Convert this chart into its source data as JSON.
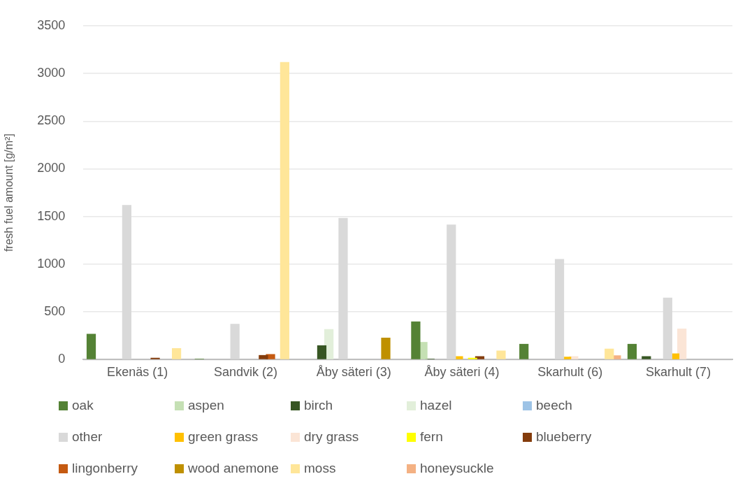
{
  "chart_data": {
    "type": "bar",
    "ylabel": "fresh fuel amount [g/m²]",
    "categories": [
      "Ekenäs (1)",
      "Sandvik (2)",
      "Åby säteri (3)",
      "Åby säteri (4)",
      "Skarhult (6)",
      "Skarhult (7)"
    ],
    "series": [
      {
        "name": "oak",
        "color": "#548235",
        "values": [
          270,
          10,
          0,
          400,
          165,
          165
        ]
      },
      {
        "name": "aspen",
        "color": "#c5e0b4",
        "values": [
          0,
          0,
          0,
          185,
          0,
          0
        ]
      },
      {
        "name": "birch",
        "color": "#375623",
        "values": [
          0,
          0,
          150,
          10,
          0,
          35
        ]
      },
      {
        "name": "hazel",
        "color": "#e2efda",
        "values": [
          0,
          0,
          320,
          0,
          0,
          0
        ]
      },
      {
        "name": "beech",
        "color": "#9dc3e6",
        "values": [
          0,
          0,
          0,
          0,
          0,
          0
        ]
      },
      {
        "name": "other",
        "color": "#d9d9d9",
        "values": [
          1620,
          375,
          1485,
          1415,
          1055,
          650
        ]
      },
      {
        "name": "green grass",
        "color": "#ffc000",
        "values": [
          0,
          0,
          0,
          35,
          30,
          65
        ]
      },
      {
        "name": "dry grass",
        "color": "#fbe5d6",
        "values": [
          0,
          0,
          0,
          0,
          35,
          325
        ]
      },
      {
        "name": "fern",
        "color": "#ffff00",
        "values": [
          0,
          0,
          0,
          20,
          0,
          0
        ]
      },
      {
        "name": "blueberry",
        "color": "#843c0c",
        "values": [
          20,
          48,
          0,
          35,
          0,
          0
        ]
      },
      {
        "name": "lingonberry",
        "color": "#c55a11",
        "values": [
          0,
          58,
          0,
          0,
          0,
          0
        ]
      },
      {
        "name": "wood anemone",
        "color": "#bf9000",
        "values": [
          0,
          0,
          230,
          0,
          0,
          0
        ]
      },
      {
        "name": "moss",
        "color": "#ffe699",
        "values": [
          120,
          3120,
          0,
          95,
          115,
          0
        ]
      },
      {
        "name": "honeysuckle",
        "color": "#f4b183",
        "values": [
          0,
          0,
          0,
          0,
          45,
          0
        ]
      }
    ],
    "ylim": [
      0,
      3500
    ],
    "yticks": [
      0,
      500,
      1000,
      1500,
      2000,
      2500,
      3000,
      3500
    ],
    "grid": "y",
    "legend": "bottom"
  }
}
